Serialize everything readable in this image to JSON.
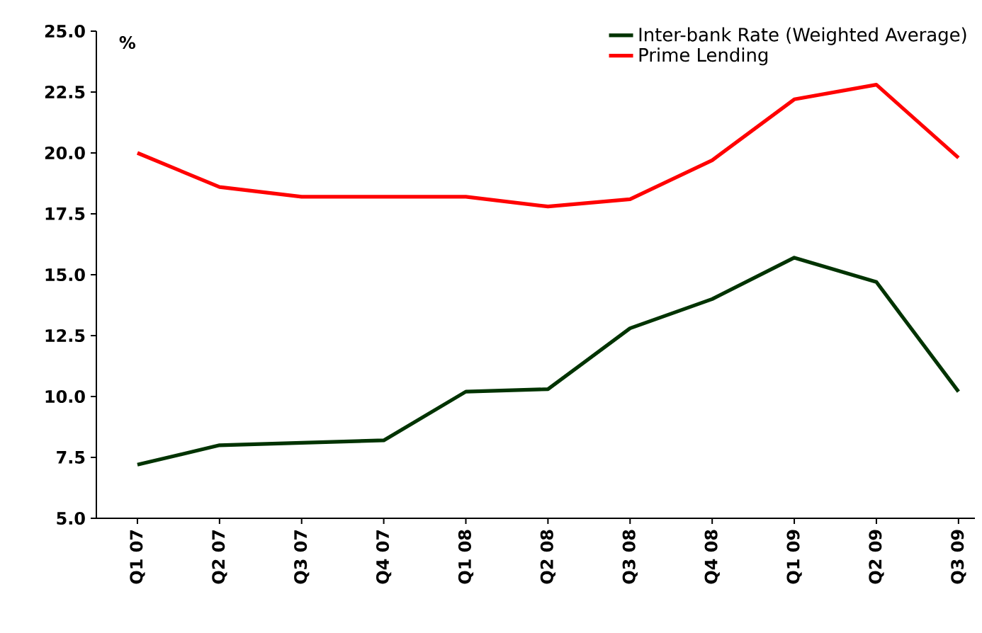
{
  "chart_data": {
    "type": "line",
    "ylabel": "%",
    "categories": [
      "Q1 07",
      "Q2 07",
      "Q3 07",
      "Q4 07",
      "Q1 08",
      "Q2 08",
      "Q3 08",
      "Q4 08",
      "Q1 09",
      "Q2 09",
      "Q3 09"
    ],
    "series": [
      {
        "name": "Inter-bank Rate (Weighted Average)",
        "color": "#003300",
        "values": [
          7.2,
          8.0,
          8.1,
          8.2,
          10.2,
          10.3,
          12.8,
          14.0,
          15.7,
          14.7,
          10.2
        ]
      },
      {
        "name": "Prime Lending",
        "color": "#ff0000",
        "values": [
          20.0,
          18.6,
          18.2,
          18.2,
          18.2,
          17.8,
          18.1,
          19.7,
          22.2,
          22.8,
          19.8
        ]
      }
    ],
    "ylim": [
      5,
      25
    ],
    "yticks": [
      {
        "value": 5,
        "label": "5.0"
      },
      {
        "value": 7.5,
        "label": "7.5"
      },
      {
        "value": 10,
        "label": "10.0"
      },
      {
        "value": 12.5,
        "label": "12.5"
      },
      {
        "value": 15,
        "label": "15.0"
      },
      {
        "value": 17.5,
        "label": "17.5"
      },
      {
        "value": 20,
        "label": "20.0"
      },
      {
        "value": 22.5,
        "label": "22.5"
      },
      {
        "value": 25,
        "label": "25.0"
      }
    ],
    "legend": "top right"
  }
}
